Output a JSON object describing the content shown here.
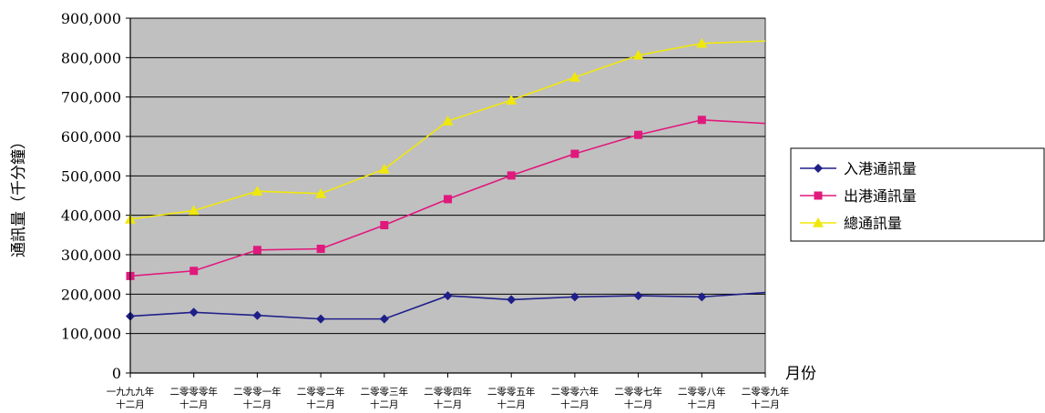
{
  "chart_data": {
    "type": "line",
    "ylabel": "通訊量（千分鐘）",
    "xlabel": "月份",
    "ylim": [
      0,
      900000
    ],
    "yticks": [
      0,
      100000,
      200000,
      300000,
      400000,
      500000,
      600000,
      700000,
      800000,
      900000
    ],
    "ytick_labels": [
      "0",
      "100,000",
      "200,000",
      "300,000",
      "400,000",
      "500,000",
      "600,000",
      "700,000",
      "800,000",
      "900,000"
    ],
    "categories": [
      [
        "一九九九年",
        "十二月"
      ],
      [
        "二零零零年",
        "十二月"
      ],
      [
        "二零零一年",
        "十二月"
      ],
      [
        "二零零二年",
        "十二月"
      ],
      [
        "二零零三年",
        "十二月"
      ],
      [
        "二零零四年",
        "十二月"
      ],
      [
        "二零零五年",
        "十二月"
      ],
      [
        "二零零六年",
        "十二月"
      ],
      [
        "二零零七年",
        "十二月"
      ],
      [
        "二零零八年",
        "十二月"
      ],
      [
        "二零零九年",
        "十二月"
      ]
    ],
    "grid": true,
    "legend_position": "right",
    "plot_background": "#c0c0c0",
    "series": [
      {
        "name": "入港通訊量",
        "color": "#1f1f8a",
        "marker": "diamond",
        "values": [
          144000,
          154000,
          146000,
          137000,
          137000,
          196000,
          186000,
          193000,
          196000,
          193000,
          204000
        ]
      },
      {
        "name": "出港通訊量",
        "color": "#e0197d",
        "marker": "square",
        "values": [
          246000,
          259000,
          312000,
          315000,
          375000,
          441000,
          501000,
          556000,
          604000,
          642000,
          633000
        ]
      },
      {
        "name": "總通訊量",
        "color": "#f0e80a",
        "marker": "triangle",
        "values": [
          390000,
          412000,
          461000,
          455000,
          517000,
          639000,
          692000,
          750000,
          806000,
          836000,
          842000
        ]
      }
    ]
  }
}
